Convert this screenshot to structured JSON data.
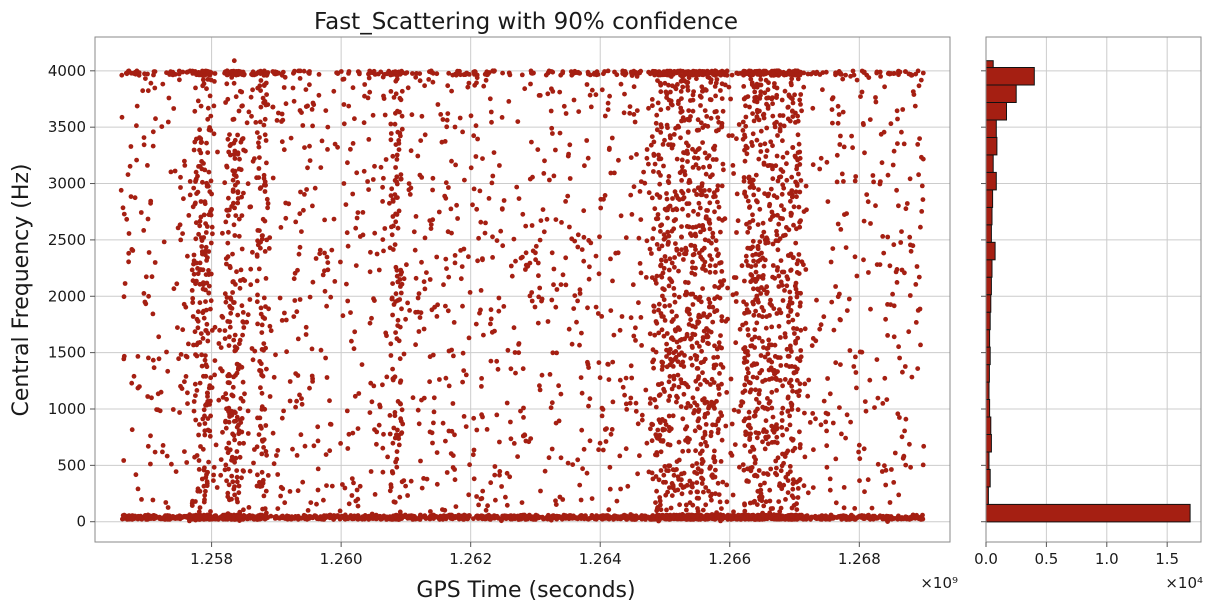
{
  "chart_data": [
    {
      "type": "scatter",
      "title": "Fast_Scattering with 90% confidence",
      "xlabel": "GPS Time (seconds)",
      "ylabel": "Central Frequency (Hz)",
      "xlim": [
        1256200000,
        1269400000
      ],
      "ylim": [
        -180,
        4300
      ],
      "x_ticks": [
        1258000000,
        1260000000,
        1262000000,
        1264000000,
        1266000000,
        1268000000
      ],
      "x_tick_labels": [
        "1.258",
        "1.260",
        "1.262",
        "1.264",
        "1.266",
        "1.268"
      ],
      "x_offset_label": "×10⁹",
      "y_ticks": [
        0,
        500,
        1000,
        1500,
        2000,
        2500,
        3000,
        3500,
        4000
      ],
      "y_tick_labels": [
        "0",
        "500",
        "1000",
        "1500",
        "2000",
        "2500",
        "3000",
        "3500",
        "4000"
      ],
      "grid": true,
      "color": "#a51f12",
      "x_range_of_points": [
        1256600000,
        1269000000
      ],
      "y_range_of_points": [
        0,
        4090
      ],
      "dense_time_bands": [
        {
          "start": 1257700000,
          "end": 1258000000
        },
        {
          "start": 1258200000,
          "end": 1258500000
        },
        {
          "start": 1258700000,
          "end": 1258850000
        },
        {
          "start": 1260750000,
          "end": 1260950000
        },
        {
          "start": 1264800000,
          "end": 1265900000
        },
        {
          "start": 1266200000,
          "end": 1267100000
        }
      ]
    },
    {
      "type": "bar",
      "orientation": "horizontal",
      "xlim": [
        0,
        17800
      ],
      "ylim": [
        -180,
        4300
      ],
      "x_ticks": [
        0,
        5000,
        10000,
        15000
      ],
      "x_tick_labels": [
        "0.0",
        "0.5",
        "1.0",
        "1.5"
      ],
      "x_offset_label": "×10⁴",
      "grid": true,
      "color": "#a51f12",
      "edgecolor": "#111111",
      "bin_edges": [
        -1,
        154,
        309,
        464,
        619,
        774,
        929,
        1084,
        1239,
        1394,
        1549,
        1704,
        1859,
        2014,
        2169,
        2324,
        2479,
        2634,
        2789,
        2944,
        3099,
        3254,
        3409,
        3564,
        3719,
        3874,
        4029,
        4090
      ],
      "values": [
        16900,
        200,
        350,
        250,
        450,
        400,
        300,
        250,
        280,
        350,
        300,
        350,
        400,
        450,
        500,
        750,
        450,
        500,
        550,
        850,
        600,
        900,
        850,
        1700,
        2500,
        4000,
        600
      ]
    }
  ]
}
